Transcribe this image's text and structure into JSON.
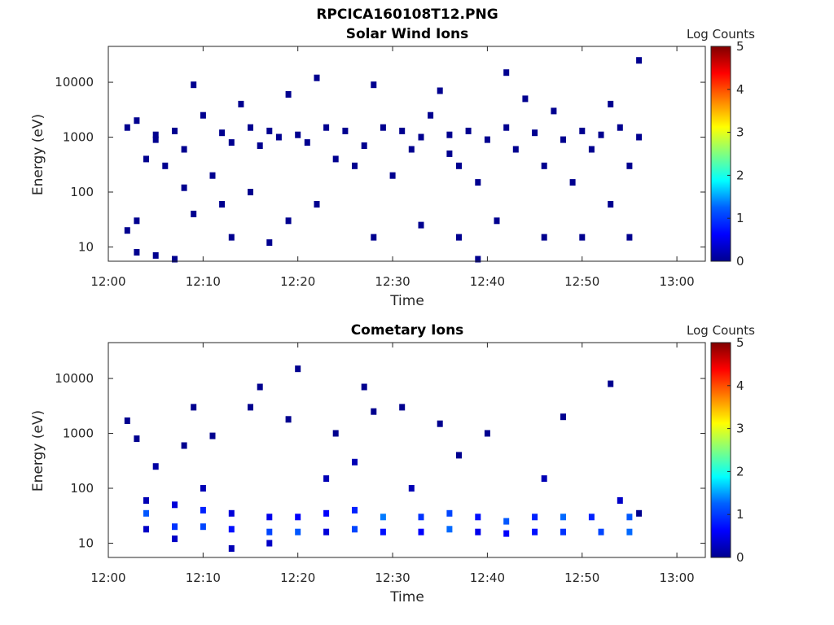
{
  "figure_title": "RPCICA160108T12.PNG",
  "colorbar_colors": [
    "#00008f",
    "#0000ff",
    "#0080ff",
    "#00ffff",
    "#80ff80",
    "#ffff00",
    "#ff8000",
    "#ff0000",
    "#800000"
  ],
  "chart_data": [
    {
      "type": "heatmap",
      "title": "Solar Wind Ions",
      "xlabel": "Time",
      "ylabel": "Energy (eV)",
      "x_ticks": [
        "12:00",
        "12:10",
        "12:20",
        "12:30",
        "12:40",
        "12:50",
        "13:00"
      ],
      "x_range": [
        "12:00",
        "13:03"
      ],
      "y_scale": "log",
      "y_ticks": [
        "10",
        "100",
        "1000",
        "10000"
      ],
      "y_range": [
        5.5,
        45000
      ],
      "colorbar": {
        "label": "Log Counts",
        "ticks": [
          "0",
          "1",
          "2",
          "3",
          "4",
          "5"
        ],
        "range": [
          0,
          5
        ],
        "colormap": "jet"
      },
      "cells": [
        [
          "12:02",
          20,
          0
        ],
        [
          "12:02",
          1500,
          0
        ],
        [
          "12:03",
          8,
          0
        ],
        [
          "12:03",
          30,
          0
        ],
        [
          "12:03",
          2000,
          0
        ],
        [
          "12:04",
          400,
          0
        ],
        [
          "12:05",
          900,
          0
        ],
        [
          "12:05",
          1100,
          0
        ],
        [
          "12:05",
          7,
          0
        ],
        [
          "12:06",
          300,
          0
        ],
        [
          "12:07",
          1300,
          0
        ],
        [
          "12:07",
          6,
          0
        ],
        [
          "12:08",
          600,
          0
        ],
        [
          "12:08",
          120,
          0
        ],
        [
          "12:09",
          9000,
          0
        ],
        [
          "12:09",
          40,
          0
        ],
        [
          "12:10",
          2500,
          0
        ],
        [
          "12:11",
          200,
          0
        ],
        [
          "12:12",
          1200,
          0
        ],
        [
          "12:12",
          60,
          0
        ],
        [
          "12:13",
          800,
          0
        ],
        [
          "12:13",
          15,
          0
        ],
        [
          "12:14",
          4000,
          0
        ],
        [
          "12:15",
          1500,
          0
        ],
        [
          "12:15",
          100,
          0
        ],
        [
          "12:16",
          700,
          0
        ],
        [
          "12:17",
          1300,
          0
        ],
        [
          "12:17",
          12,
          0
        ],
        [
          "12:18",
          1000,
          0
        ],
        [
          "12:19",
          6000,
          0
        ],
        [
          "12:19",
          30,
          0
        ],
        [
          "12:20",
          1100,
          0
        ],
        [
          "12:21",
          800,
          0
        ],
        [
          "12:22",
          12000,
          0
        ],
        [
          "12:22",
          60,
          0
        ],
        [
          "12:23",
          1500,
          0
        ],
        [
          "12:24",
          400,
          0
        ],
        [
          "12:25",
          1300,
          0
        ],
        [
          "12:26",
          300,
          0
        ],
        [
          "12:27",
          700,
          0
        ],
        [
          "12:28",
          9000,
          0
        ],
        [
          "12:28",
          15,
          0
        ],
        [
          "12:29",
          1500,
          0
        ],
        [
          "12:30",
          200,
          0
        ],
        [
          "12:31",
          1300,
          0
        ],
        [
          "12:32",
          600,
          0
        ],
        [
          "12:33",
          1000,
          0
        ],
        [
          "12:33",
          25,
          0
        ],
        [
          "12:34",
          2500,
          0
        ],
        [
          "12:35",
          7000,
          0
        ],
        [
          "12:36",
          1100,
          0
        ],
        [
          "12:36",
          500,
          0
        ],
        [
          "12:37",
          300,
          0
        ],
        [
          "12:37",
          15,
          0
        ],
        [
          "12:38",
          1300,
          0
        ],
        [
          "12:39",
          6,
          0
        ],
        [
          "12:39",
          150,
          0
        ],
        [
          "12:40",
          900,
          0
        ],
        [
          "12:41",
          30,
          0
        ],
        [
          "12:42",
          1500,
          0
        ],
        [
          "12:42",
          15000,
          0
        ],
        [
          "12:43",
          600,
          0
        ],
        [
          "12:44",
          5000,
          0
        ],
        [
          "12:45",
          1200,
          0
        ],
        [
          "12:46",
          15,
          0
        ],
        [
          "12:46",
          300,
          0
        ],
        [
          "12:47",
          3000,
          0
        ],
        [
          "12:48",
          900,
          0
        ],
        [
          "12:49",
          150,
          0
        ],
        [
          "12:50",
          1300,
          0
        ],
        [
          "12:50",
          15,
          0
        ],
        [
          "12:51",
          600,
          0
        ],
        [
          "12:52",
          1100,
          0
        ],
        [
          "12:53",
          4000,
          0
        ],
        [
          "12:53",
          60,
          0
        ],
        [
          "12:54",
          1500,
          0
        ],
        [
          "12:55",
          300,
          0
        ],
        [
          "12:55",
          15,
          0
        ],
        [
          "12:56",
          1000,
          0
        ],
        [
          "12:56",
          25000,
          0
        ]
      ]
    },
    {
      "type": "heatmap",
      "title": "Cometary Ions",
      "xlabel": "Time",
      "ylabel": "Energy (eV)",
      "x_ticks": [
        "12:00",
        "12:10",
        "12:20",
        "12:30",
        "12:40",
        "12:50",
        "13:00"
      ],
      "x_range": [
        "12:00",
        "13:03"
      ],
      "y_scale": "log",
      "y_ticks": [
        "10",
        "100",
        "1000",
        "10000"
      ],
      "y_range": [
        5.5,
        45000
      ],
      "colorbar": {
        "label": "Log Counts",
        "ticks": [
          "0",
          "1",
          "2",
          "3",
          "4",
          "5"
        ],
        "range": [
          0,
          5
        ],
        "colormap": "jet"
      },
      "cells": [
        [
          "12:02",
          1700,
          0
        ],
        [
          "12:03",
          800,
          0
        ],
        [
          "12:04",
          60,
          0.3
        ],
        [
          "12:04",
          35,
          1.2
        ],
        [
          "12:04",
          18,
          0.4
        ],
        [
          "12:05",
          250,
          0.2
        ],
        [
          "12:07",
          50,
          0.5
        ],
        [
          "12:07",
          20,
          1.0
        ],
        [
          "12:07",
          12,
          0.4
        ],
        [
          "12:08",
          600,
          0
        ],
        [
          "12:09",
          3000,
          0
        ],
        [
          "12:10",
          100,
          0.3
        ],
        [
          "12:10",
          40,
          0.9
        ],
        [
          "12:10",
          20,
          1.1
        ],
        [
          "12:11",
          900,
          0
        ],
        [
          "12:13",
          35,
          0.5
        ],
        [
          "12:13",
          18,
          0.8
        ],
        [
          "12:13",
          8,
          0.3
        ],
        [
          "12:15",
          3000,
          0
        ],
        [
          "12:16",
          7000,
          0
        ],
        [
          "12:17",
          30,
          0.6
        ],
        [
          "12:17",
          16,
          1.1
        ],
        [
          "12:17",
          10,
          0.4
        ],
        [
          "12:19",
          1800,
          0
        ],
        [
          "12:20",
          15000,
          0
        ],
        [
          "12:20",
          30,
          0.7
        ],
        [
          "12:20",
          16,
          1.2
        ],
        [
          "12:23",
          150,
          0.3
        ],
        [
          "12:23",
          35,
          0.7
        ],
        [
          "12:23",
          16,
          0.5
        ],
        [
          "12:24",
          1000,
          0
        ],
        [
          "12:26",
          300,
          0.3
        ],
        [
          "12:26",
          40,
          0.9
        ],
        [
          "12:26",
          18,
          1.1
        ],
        [
          "12:27",
          7000,
          0
        ],
        [
          "12:28",
          2500,
          0
        ],
        [
          "12:29",
          30,
          1.4
        ],
        [
          "12:29",
          16,
          0.8
        ],
        [
          "12:31",
          3000,
          0
        ],
        [
          "12:32",
          100,
          0.3
        ],
        [
          "12:33",
          30,
          1.0
        ],
        [
          "12:33",
          16,
          0.7
        ],
        [
          "12:35",
          1500,
          0
        ],
        [
          "12:36",
          35,
          1.1
        ],
        [
          "12:36",
          18,
          1.3
        ],
        [
          "12:37",
          400,
          0
        ],
        [
          "12:39",
          30,
          0.8
        ],
        [
          "12:39",
          16,
          0.6
        ],
        [
          "12:40",
          1000,
          0
        ],
        [
          "12:42",
          25,
          1.2
        ],
        [
          "12:42",
          15,
          0.7
        ],
        [
          "12:45",
          30,
          0.9
        ],
        [
          "12:45",
          16,
          0.8
        ],
        [
          "12:46",
          150,
          0.3
        ],
        [
          "12:48",
          2000,
          0
        ],
        [
          "12:48",
          30,
          1.3
        ],
        [
          "12:48",
          16,
          1.0
        ],
        [
          "12:51",
          30,
          0.9
        ],
        [
          "12:52",
          16,
          1.1
        ],
        [
          "12:53",
          8000,
          0
        ],
        [
          "12:54",
          60,
          0.4
        ],
        [
          "12:55",
          30,
          1.2
        ],
        [
          "12:55",
          16,
          1.3
        ],
        [
          "12:56",
          35,
          0
        ]
      ]
    }
  ]
}
